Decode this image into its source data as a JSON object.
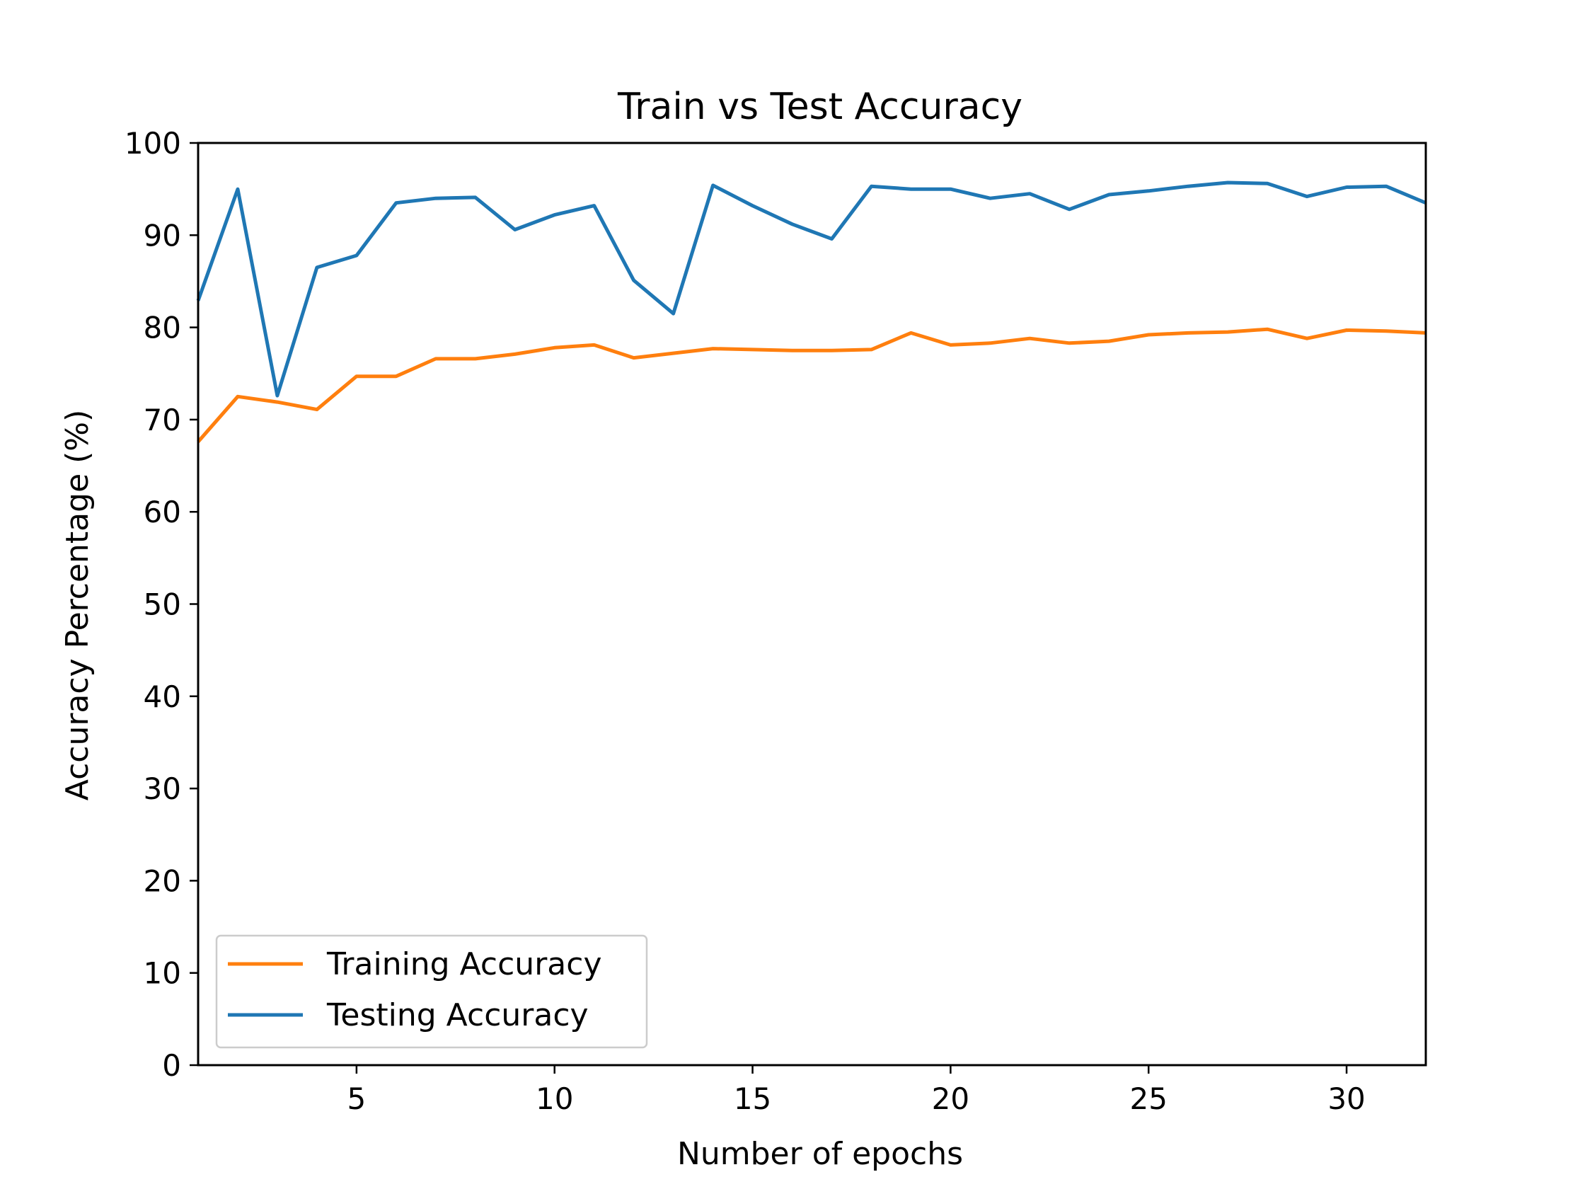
{
  "chart_data": {
    "type": "line",
    "title": "Train vs Test Accuracy",
    "xlabel": "Number of epochs",
    "ylabel": "Accuracy Percentage (%)",
    "xlim": [
      1,
      32
    ],
    "ylim": [
      0,
      100
    ],
    "xticks": [
      5,
      10,
      15,
      20,
      25,
      30
    ],
    "yticks": [
      0,
      10,
      20,
      30,
      40,
      50,
      60,
      70,
      80,
      90,
      100
    ],
    "grid": false,
    "legend_position": "lower-left",
    "x": [
      1,
      2,
      3,
      4,
      5,
      6,
      7,
      8,
      9,
      10,
      11,
      12,
      13,
      14,
      15,
      16,
      17,
      18,
      19,
      20,
      21,
      22,
      23,
      24,
      25,
      26,
      27,
      28,
      29,
      30,
      31,
      32
    ],
    "series": [
      {
        "name": "Training Accuracy",
        "color": "#ff7f0e",
        "values": [
          67.6,
          72.5,
          71.9,
          71.1,
          74.7,
          74.7,
          76.6,
          76.6,
          77.1,
          77.8,
          78.1,
          76.7,
          77.2,
          77.7,
          77.6,
          77.5,
          77.5,
          77.6,
          79.4,
          78.1,
          78.3,
          78.8,
          78.3,
          78.5,
          79.2,
          79.4,
          79.5,
          79.8,
          78.8,
          79.7,
          79.6,
          79.4
        ]
      },
      {
        "name": "Testing Accuracy",
        "color": "#1f77b4",
        "values": [
          82.9,
          95.0,
          72.6,
          86.5,
          87.8,
          93.5,
          94.0,
          94.1,
          90.6,
          92.2,
          93.2,
          85.1,
          81.5,
          95.4,
          93.2,
          91.2,
          89.6,
          95.3,
          95.0,
          95.0,
          94.0,
          94.5,
          92.8,
          94.4,
          94.8,
          95.3,
          95.7,
          95.6,
          94.2,
          95.2,
          95.3,
          93.5
        ]
      }
    ]
  }
}
